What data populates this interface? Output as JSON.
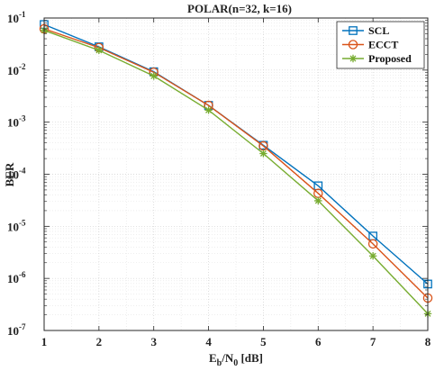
{
  "chart_data": {
    "type": "line",
    "title": "POLAR(n=32, k=16)",
    "xlabel": {
      "main": "E",
      "sub1": "b",
      "mid": "/N",
      "sub2": "0",
      "tail": " [dB]"
    },
    "ylabel": "BER",
    "x": [
      1,
      2,
      3,
      4,
      5,
      6,
      7,
      8
    ],
    "xlim": [
      1,
      8
    ],
    "ylim": [
      1e-07,
      0.1
    ],
    "yscale": "log",
    "x_ticks": [
      "1",
      "2",
      "3",
      "4",
      "5",
      "6",
      "7",
      "8"
    ],
    "y_ticks": [
      {
        "base": "10",
        "exp": "-7"
      },
      {
        "base": "10",
        "exp": "-6"
      },
      {
        "base": "10",
        "exp": "-5"
      },
      {
        "base": "10",
        "exp": "-4"
      },
      {
        "base": "10",
        "exp": "-3"
      },
      {
        "base": "10",
        "exp": "-2"
      },
      {
        "base": "10",
        "exp": "-1"
      }
    ],
    "grid": true,
    "legend_position": "top-right",
    "series": [
      {
        "name": "SCL",
        "color": "#0072BD",
        "marker": "square",
        "values": [
          0.075,
          0.028,
          0.0093,
          0.0021,
          0.00036,
          6e-05,
          6.5e-06,
          7.8e-07
        ]
      },
      {
        "name": "ECCT",
        "color": "#D95319",
        "marker": "circle",
        "values": [
          0.062,
          0.027,
          0.0091,
          0.0021,
          0.00035,
          4.3e-05,
          4.6e-06,
          4.2e-07
        ]
      },
      {
        "name": "Proposed",
        "color": "#77AC30",
        "marker": "asterisk",
        "values": [
          0.058,
          0.024,
          0.0077,
          0.0017,
          0.00025,
          3.1e-05,
          2.7e-06,
          2.1e-07
        ]
      }
    ]
  }
}
